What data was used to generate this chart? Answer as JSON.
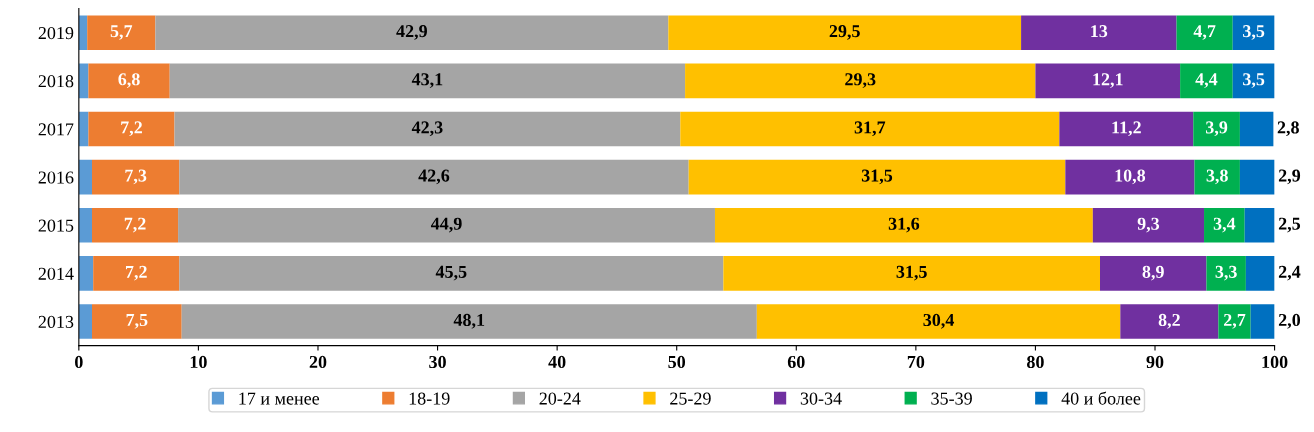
{
  "chart_data": {
    "type": "bar",
    "orientation": "horizontal",
    "stacked": true,
    "categories": [
      "2019",
      "2018",
      "2017",
      "2016",
      "2015",
      "2014",
      "2013"
    ],
    "series": [
      {
        "name": "17 и менее",
        "color": "#5b9bd5",
        "values": [
          0.7,
          0.8,
          0.8,
          1.1,
          1.1,
          1.2,
          1.1
        ]
      },
      {
        "name": "18-19",
        "color": "#ed7d31",
        "values": [
          5.7,
          6.8,
          7.2,
          7.3,
          7.2,
          7.2,
          7.5
        ],
        "value_labels": [
          "5,7",
          "6,8",
          "7,2",
          "7,3",
          "7,2",
          "7,2",
          "7,5"
        ]
      },
      {
        "name": "20-24",
        "color": "#a5a5a5",
        "values": [
          42.9,
          43.1,
          42.3,
          42.6,
          44.9,
          45.5,
          48.1
        ],
        "value_labels": [
          "42,9",
          "43,1",
          "42,3",
          "42,6",
          "44,9",
          "45,5",
          "48,1"
        ]
      },
      {
        "name": "25-29",
        "color": "#ffc000",
        "values": [
          29.5,
          29.3,
          31.7,
          31.5,
          31.6,
          31.5,
          30.4
        ],
        "value_labels": [
          "29,5",
          "29,3",
          "31,7",
          "31,5",
          "31,6",
          "31,5",
          "30,4"
        ]
      },
      {
        "name": "30-34",
        "color": "#7030a0",
        "values": [
          13,
          12.1,
          11.2,
          10.8,
          9.3,
          8.9,
          8.2
        ],
        "value_labels": [
          "13",
          "12,1",
          "11,2",
          "10,8",
          "9,3",
          "8,9",
          "8,2"
        ]
      },
      {
        "name": "35-39",
        "color": "#00b050",
        "values": [
          4.7,
          4.4,
          3.9,
          3.8,
          3.4,
          3.3,
          2.7
        ],
        "value_labels": [
          "4,7",
          "4,4",
          "3,9",
          "3,8",
          "3,4",
          "3,3",
          "2,7"
        ]
      },
      {
        "name": "40 и более",
        "color": "#0070c0",
        "values": [
          3.5,
          3.5,
          2.8,
          2.9,
          2.5,
          2.4,
          2.0
        ],
        "value_labels": [
          "3,5",
          "3,5",
          "2,8",
          "2,9",
          "2,5",
          "2,4",
          "2,0"
        ]
      }
    ],
    "xlim": [
      0,
      100
    ],
    "xticks": [
      0,
      10,
      20,
      30,
      40,
      50,
      60,
      70,
      80,
      90,
      100
    ],
    "grid": false,
    "legend": "bottom"
  }
}
